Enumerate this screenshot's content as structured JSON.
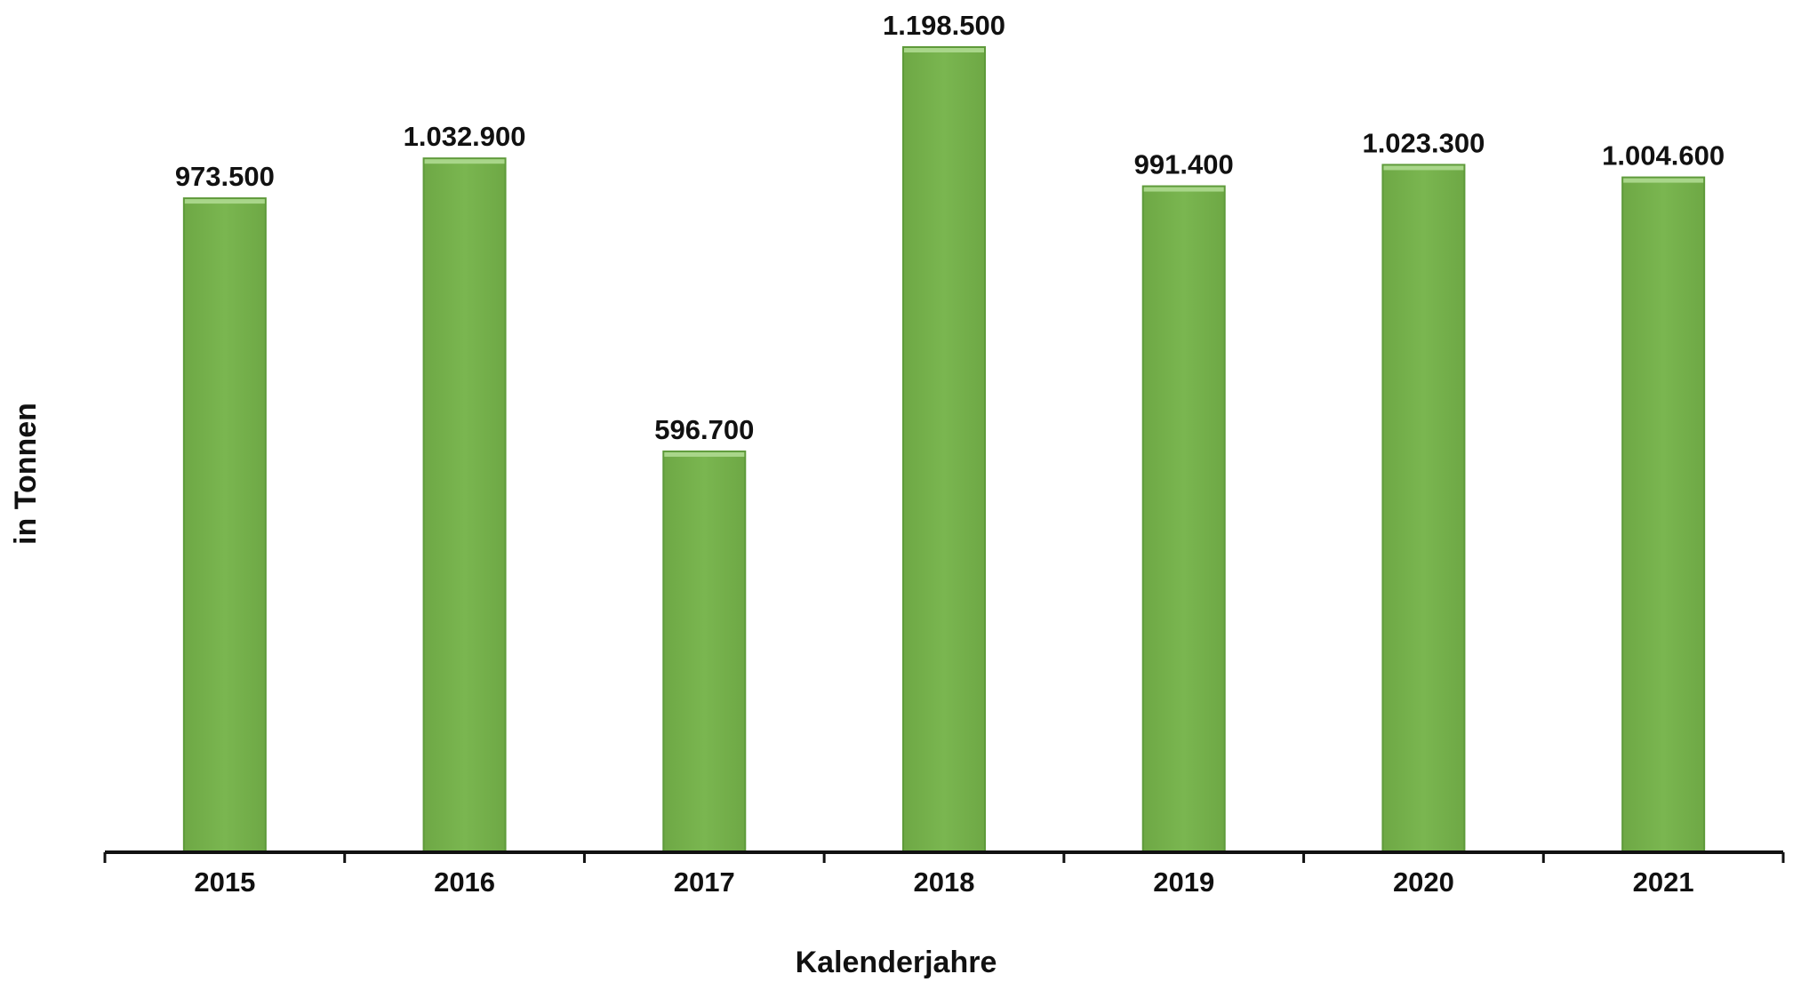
{
  "chart_data": {
    "type": "bar",
    "categories": [
      "2015",
      "2016",
      "2017",
      "2018",
      "2019",
      "2020",
      "2021"
    ],
    "values": [
      973500,
      1032900,
      596700,
      1198500,
      991400,
      1023300,
      1004600
    ],
    "value_labels": [
      "973.500",
      "1.032.900",
      "596.700",
      "1.198.500",
      "991.400",
      "1.023.300",
      "1.004.600"
    ],
    "title": "",
    "xlabel": "Kalenderjahre",
    "ylabel": "in Tonnen",
    "ylim": [
      0,
      1198500
    ],
    "grid": false,
    "legend": "none",
    "colors": {
      "bar_fill": "#7ab650",
      "bar_top": "#a9d68a",
      "bar_stroke": "#5e9a3a",
      "axis": "#111111",
      "text": "#111111"
    }
  }
}
